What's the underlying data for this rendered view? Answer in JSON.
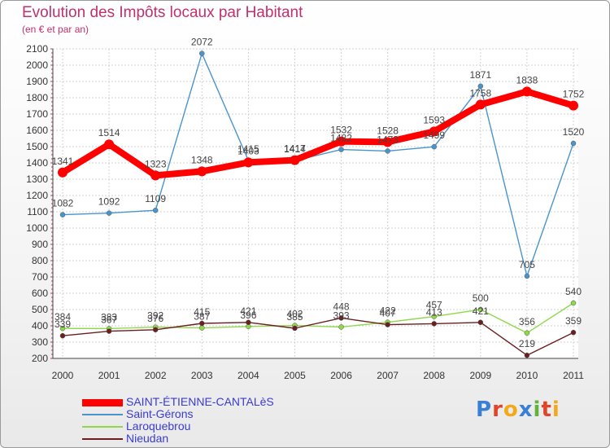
{
  "title": "Evolution des Impôts locaux par Habitant",
  "subtitle": "(en € et par an)",
  "logo": {
    "text": "Proxiti",
    "colors": [
      "#3a7fd6",
      "#e0452a",
      "#f2a91c",
      "#3a7fd6",
      "#63b23a",
      "#e0452a",
      "#f2a91c"
    ]
  },
  "chart_data": {
    "type": "line",
    "title": "Evolution des Impôts locaux par Habitant",
    "subtitle": "(en € et par an)",
    "xlabel": "",
    "ylabel": "",
    "ylim": [
      200,
      2100
    ],
    "ytick_step": 100,
    "grid": true,
    "legend_position": "bottom-left",
    "categories": [
      "2000",
      "2001",
      "2002",
      "2003",
      "2004",
      "2005",
      "2006",
      "2007",
      "2008",
      "2009",
      "2010",
      "2011"
    ],
    "series": [
      {
        "name": "SAINT-ÉTIENNE-CANTALèS",
        "color": "#ff0000",
        "emphasis": true,
        "values": [
          1341,
          1514,
          1323,
          1348,
          1403,
          1417,
          1532,
          1528,
          1593,
          1758,
          1838,
          1752
        ]
      },
      {
        "name": "Saint-Gérons",
        "color": "#4a94cc",
        "emphasis": false,
        "values": [
          1082,
          1092,
          1109,
          2072,
          1415,
          1414,
          1482,
          1473,
          1499,
          1871,
          705,
          1520
        ]
      },
      {
        "name": "Laroquebrou",
        "color": "#8fd84a",
        "emphasis": false,
        "values": [
          384,
          383,
          392,
          387,
          396,
          402,
          393,
          422,
          457,
          500,
          356,
          540
        ]
      },
      {
        "name": "Nieudan",
        "color": "#6b1f1f",
        "emphasis": false,
        "values": [
          339,
          367,
          376,
          415,
          421,
          385,
          448,
          407,
          413,
          421,
          219,
          359
        ]
      }
    ]
  }
}
